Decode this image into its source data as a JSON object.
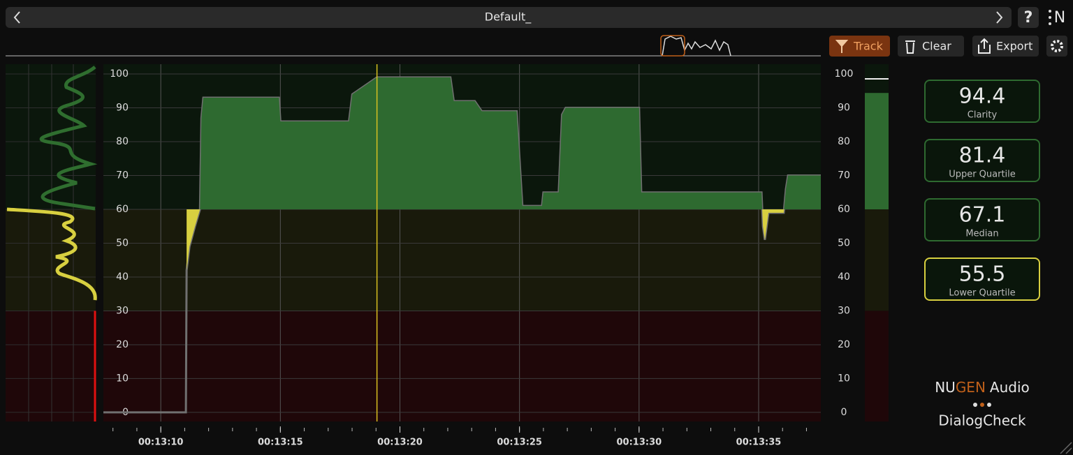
{
  "header": {
    "title": "Default_",
    "help": "?",
    "logo": "N"
  },
  "toolbar": {
    "track": "Track",
    "clear": "Clear",
    "export": "Export"
  },
  "graph": {
    "xlim": [
      787.6,
      817.6
    ],
    "ylim": [
      -2.7,
      102.9
    ],
    "yticks": [
      0,
      10,
      20,
      30,
      40,
      50,
      60,
      70,
      80,
      90,
      100
    ],
    "xticks": [
      {
        "value": 790,
        "label": "00:13:10"
      },
      {
        "value": 795,
        "label": "00:13:15"
      },
      {
        "value": 800,
        "label": "00:13:20"
      },
      {
        "value": 805,
        "label": "00:13:25"
      },
      {
        "value": 810,
        "label": "00:13:30"
      },
      {
        "value": 815,
        "label": "00:13:35"
      }
    ],
    "xminor_ticks": [
      788,
      789,
      790,
      791,
      792,
      793,
      794,
      795,
      796,
      797,
      798,
      799,
      800,
      801,
      802,
      803,
      804,
      805,
      806,
      807,
      808,
      809,
      810,
      811,
      812,
      813,
      814,
      815,
      816,
      817
    ],
    "thresholds": [
      30,
      60
    ],
    "cursor": 799.04,
    "x": [
      787.6,
      791.05,
      791.08,
      791.2,
      791.43,
      791.64,
      791.7,
      791.78,
      794.94,
      795.0,
      797.87,
      798.01,
      799.04,
      802.11,
      802.25,
      803.13,
      803.42,
      804.88,
      805.12,
      805.94,
      806.0,
      806.64,
      806.78,
      806.93,
      810.0,
      810.09,
      815.12,
      815.18,
      815.26,
      815.41,
      816.05,
      816.14,
      816.23,
      817.6
    ],
    "values": [
      0,
      0,
      42,
      49,
      55,
      60,
      87,
      93,
      93,
      86,
      86,
      94,
      99,
      99,
      92,
      92,
      89,
      89,
      61,
      61,
      65,
      65,
      88,
      90,
      90,
      65,
      65,
      55,
      51,
      59,
      59,
      66,
      70,
      70
    ]
  },
  "stats": [
    {
      "value": 94.4,
      "label": "Clarity"
    },
    {
      "value": 81.4,
      "label": "Upper Quartile"
    },
    {
      "value": 67.1,
      "label": "Median"
    },
    {
      "value": 55.5,
      "label": "Lower Quartile"
    }
  ],
  "brand": {
    "nu": "NU",
    "gen": "GEN",
    "audio": "Audio",
    "product": "DialogCheck"
  }
}
